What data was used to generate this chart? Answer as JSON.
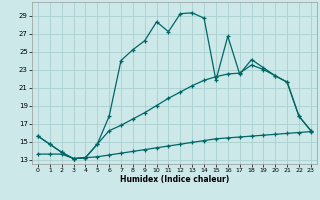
{
  "xlabel": "Humidex (Indice chaleur)",
  "bg_color": "#cce8e8",
  "grid_color": "#aad0d0",
  "line_color": "#006666",
  "xlim": [
    -0.5,
    23.5
  ],
  "ylim": [
    12.5,
    30.5
  ],
  "xticks": [
    0,
    1,
    2,
    3,
    4,
    5,
    6,
    7,
    8,
    9,
    10,
    11,
    12,
    13,
    14,
    15,
    16,
    17,
    18,
    19,
    20,
    21,
    22,
    23
  ],
  "yticks": [
    13,
    15,
    17,
    19,
    21,
    23,
    25,
    27,
    29
  ],
  "line1_x": [
    0,
    1,
    2,
    3,
    4,
    5,
    6,
    7,
    8,
    9,
    10,
    11,
    12,
    13,
    14,
    15,
    16,
    17,
    18,
    19,
    20,
    21,
    22,
    23
  ],
  "line1_y": [
    15.6,
    14.7,
    13.8,
    13.1,
    13.2,
    14.7,
    17.8,
    24.0,
    25.2,
    26.2,
    28.3,
    27.2,
    29.2,
    29.3,
    28.7,
    21.8,
    26.7,
    22.5,
    24.1,
    23.2,
    22.3,
    21.6,
    17.8,
    16.2
  ],
  "line2_x": [
    0,
    1,
    2,
    3,
    4,
    5,
    6,
    7,
    8,
    9,
    10,
    11,
    12,
    13,
    14,
    15,
    16,
    17,
    18,
    19,
    20,
    21,
    22,
    23
  ],
  "line2_y": [
    15.6,
    14.7,
    13.8,
    13.1,
    13.2,
    14.7,
    16.2,
    16.8,
    17.5,
    18.2,
    19.0,
    19.8,
    20.5,
    21.2,
    21.8,
    22.2,
    22.5,
    22.6,
    23.5,
    23.0,
    22.3,
    21.6,
    17.8,
    16.2
  ],
  "line3_x": [
    0,
    1,
    2,
    3,
    4,
    5,
    6,
    7,
    8,
    9,
    10,
    11,
    12,
    13,
    14,
    15,
    16,
    17,
    18,
    19,
    20,
    21,
    22,
    23
  ],
  "line3_y": [
    13.6,
    13.6,
    13.6,
    13.1,
    13.2,
    13.3,
    13.5,
    13.7,
    13.9,
    14.1,
    14.3,
    14.5,
    14.7,
    14.9,
    15.1,
    15.3,
    15.4,
    15.5,
    15.6,
    15.7,
    15.8,
    15.9,
    16.0,
    16.1
  ]
}
